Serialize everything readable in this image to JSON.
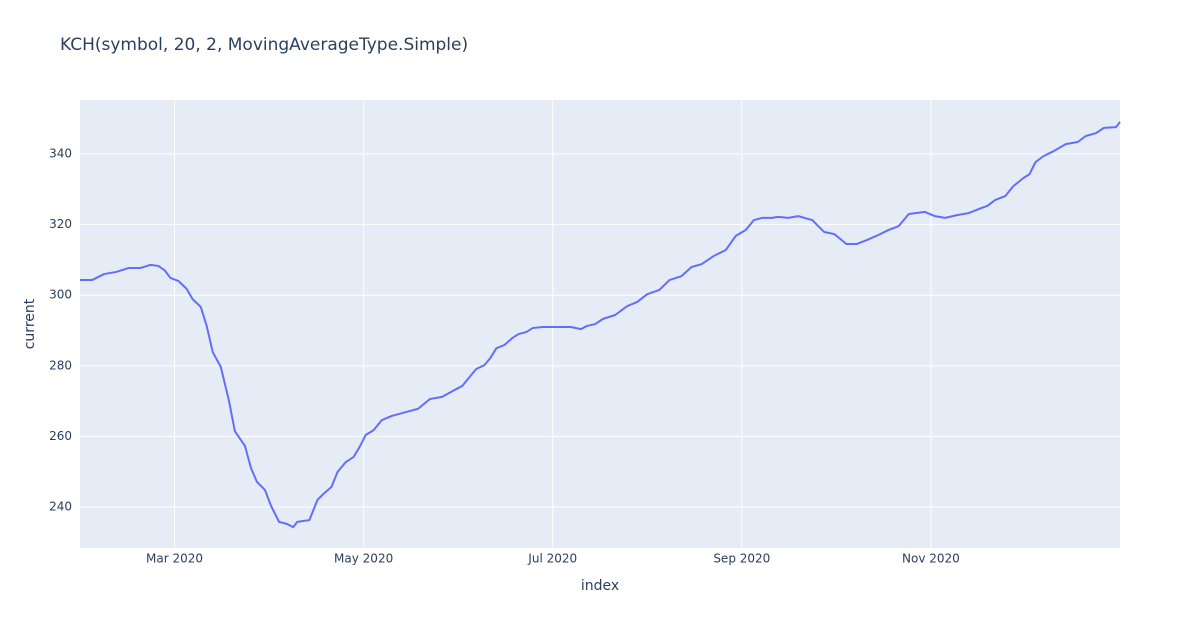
{
  "chart_data": {
    "type": "line",
    "title": "KCH(symbol, 20, 2, MovingAverageType.Simple)",
    "xlabel": "index",
    "ylabel": "current",
    "xlim": [
      1,
      12
    ],
    "ylim": [
      228.4,
      355.3
    ],
    "xticks": [
      {
        "value": 2,
        "label": "Mar 2020"
      },
      {
        "value": 4,
        "label": "May 2020"
      },
      {
        "value": 6,
        "label": "Jul 2020"
      },
      {
        "value": 8,
        "label": "Sep 2020"
      },
      {
        "value": 10,
        "label": "Nov 2020"
      }
    ],
    "yticks": [
      240,
      260,
      280,
      300,
      320,
      340
    ],
    "grid": true,
    "x": [
      1,
      1.128,
      1.255,
      1.383,
      1.511,
      1.638,
      1.745,
      1.83,
      1.894,
      1.957,
      2.043,
      2.128,
      2.191,
      2.277,
      2.34,
      2.404,
      2.489,
      2.574,
      2.638,
      2.745,
      2.809,
      2.872,
      2.957,
      3.021,
      3.106,
      3.191,
      3.255,
      3.298,
      3.426,
      3.511,
      3.574,
      3.66,
      3.723,
      3.809,
      3.894,
      3.957,
      4.021,
      4.106,
      4.191,
      4.298,
      4.447,
      4.574,
      4.702,
      4.83,
      4.957,
      5.043,
      5.128,
      5.191,
      5.277,
      5.34,
      5.404,
      5.489,
      5.574,
      5.638,
      5.723,
      5.787,
      5.894,
      6.064,
      6.191,
      6.298,
      6.362,
      6.447,
      6.532,
      6.66,
      6.787,
      6.894,
      7,
      7.128,
      7.234,
      7.362,
      7.468,
      7.574,
      7.702,
      7.83,
      7.936,
      8.043,
      8.128,
      8.213,
      8.319,
      8.383,
      8.489,
      8.596,
      8.745,
      8.872,
      8.979,
      9.106,
      9.213,
      9.319,
      9.447,
      9.553,
      9.66,
      9.766,
      9.936,
      10.043,
      10.149,
      10.277,
      10.404,
      10.532,
      10.596,
      10.681,
      10.787,
      10.872,
      10.979,
      11.043,
      11.106,
      11.191,
      11.298,
      11.426,
      11.553,
      11.638,
      11.745,
      11.83,
      11.957,
      12
    ],
    "series": [
      {
        "color": "#636efa",
        "values": [
          304.3,
          304.3,
          306.0,
          306.6,
          307.7,
          307.7,
          308.6,
          308.3,
          307.1,
          304.9,
          304.0,
          301.8,
          298.9,
          296.7,
          291.3,
          283.9,
          279.7,
          270.3,
          261.5,
          257.3,
          251.0,
          247.1,
          244.8,
          240.3,
          235.8,
          235.2,
          234.3,
          235.8,
          236.3,
          242.0,
          243.7,
          245.7,
          249.9,
          252.7,
          254.2,
          257.0,
          260.4,
          261.8,
          264.6,
          265.8,
          266.9,
          267.8,
          270.6,
          271.2,
          273.1,
          274.3,
          277.1,
          279.1,
          280.2,
          282.2,
          285.0,
          285.9,
          287.9,
          289.0,
          289.6,
          290.7,
          291.0,
          291.0,
          291.0,
          290.4,
          291.3,
          291.8,
          293.3,
          294.4,
          296.9,
          298.1,
          300.3,
          301.5,
          304.3,
          305.4,
          308.0,
          308.8,
          311.1,
          312.8,
          316.8,
          318.5,
          321.3,
          321.9,
          321.9,
          322.2,
          321.9,
          322.4,
          321.3,
          317.9,
          317.3,
          314.5,
          314.5,
          315.6,
          317.1,
          318.5,
          319.6,
          323.0,
          323.6,
          322.4,
          321.9,
          322.7,
          323.3,
          324.7,
          325.3,
          327.0,
          328.1,
          330.9,
          333.2,
          334.3,
          337.7,
          339.4,
          340.8,
          342.8,
          343.4,
          345.1,
          345.9,
          347.4,
          347.6,
          349.1
        ]
      }
    ]
  }
}
